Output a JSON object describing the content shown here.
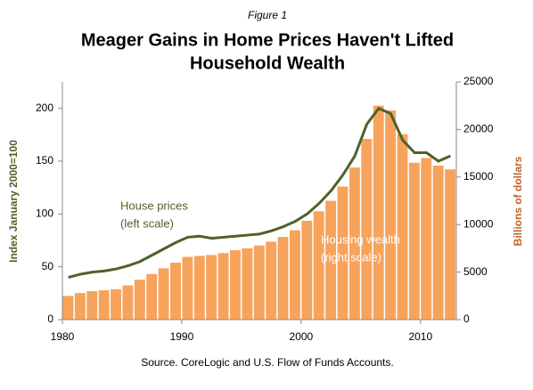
{
  "chart_data": {
    "type": "bar_line",
    "figure_label": "Figure 1",
    "title": [
      "Meager Gains in Home Prices Haven't Lifted",
      "Household Wealth"
    ],
    "ylabel": "Index January 2000=100",
    "y2label": "Billions of dollars",
    "source": "Source. CoreLogic and U.S. Flow of Funds Accounts.",
    "annotations": [
      {
        "lines": [
          "House prices",
          "(left scale)"
        ],
        "color": "#4f6228"
      },
      {
        "lines": [
          "Housing wealth",
          "(right scale)"
        ],
        "color": "#ffffff"
      }
    ],
    "x": [
      1980,
      1981,
      1982,
      1983,
      1984,
      1985,
      1986,
      1987,
      1988,
      1989,
      1990,
      1991,
      1992,
      1993,
      1994,
      1995,
      1996,
      1997,
      1998,
      1999,
      2000,
      2001,
      2002,
      2003,
      2004,
      2005,
      2006,
      2007,
      2008,
      2009,
      2010,
      2011,
      2012
    ],
    "xlim": [
      1980,
      2013
    ],
    "xticks": [
      1980,
      1990,
      2000,
      2010
    ],
    "ylim": [
      0,
      225
    ],
    "yticks": [
      0,
      50,
      100,
      150,
      200
    ],
    "y2lim": [
      0,
      25000
    ],
    "y2ticks": [
      0,
      5000,
      10000,
      15000,
      20000,
      25000
    ],
    "series": [
      {
        "name": "Housing wealth",
        "type": "bar",
        "axis": "y2",
        "color": "#f7a35c",
        "values": [
          2500,
          2800,
          3000,
          3100,
          3200,
          3600,
          4200,
          4800,
          5400,
          6000,
          6600,
          6700,
          6800,
          7000,
          7300,
          7500,
          7800,
          8200,
          8700,
          9400,
          10400,
          11400,
          12500,
          14000,
          16000,
          19000,
          22500,
          22000,
          19500,
          16500,
          17000,
          16200,
          15800
        ]
      },
      {
        "name": "House prices",
        "type": "line",
        "axis": "y",
        "color": "#4f6228",
        "values": [
          40,
          43,
          45,
          46,
          48,
          51,
          55,
          61,
          67,
          73,
          78,
          79,
          77,
          78,
          79,
          80,
          81,
          84,
          88,
          93,
          100,
          110,
          122,
          137,
          155,
          185,
          200,
          195,
          170,
          158,
          158,
          150,
          155
        ]
      }
    ]
  }
}
